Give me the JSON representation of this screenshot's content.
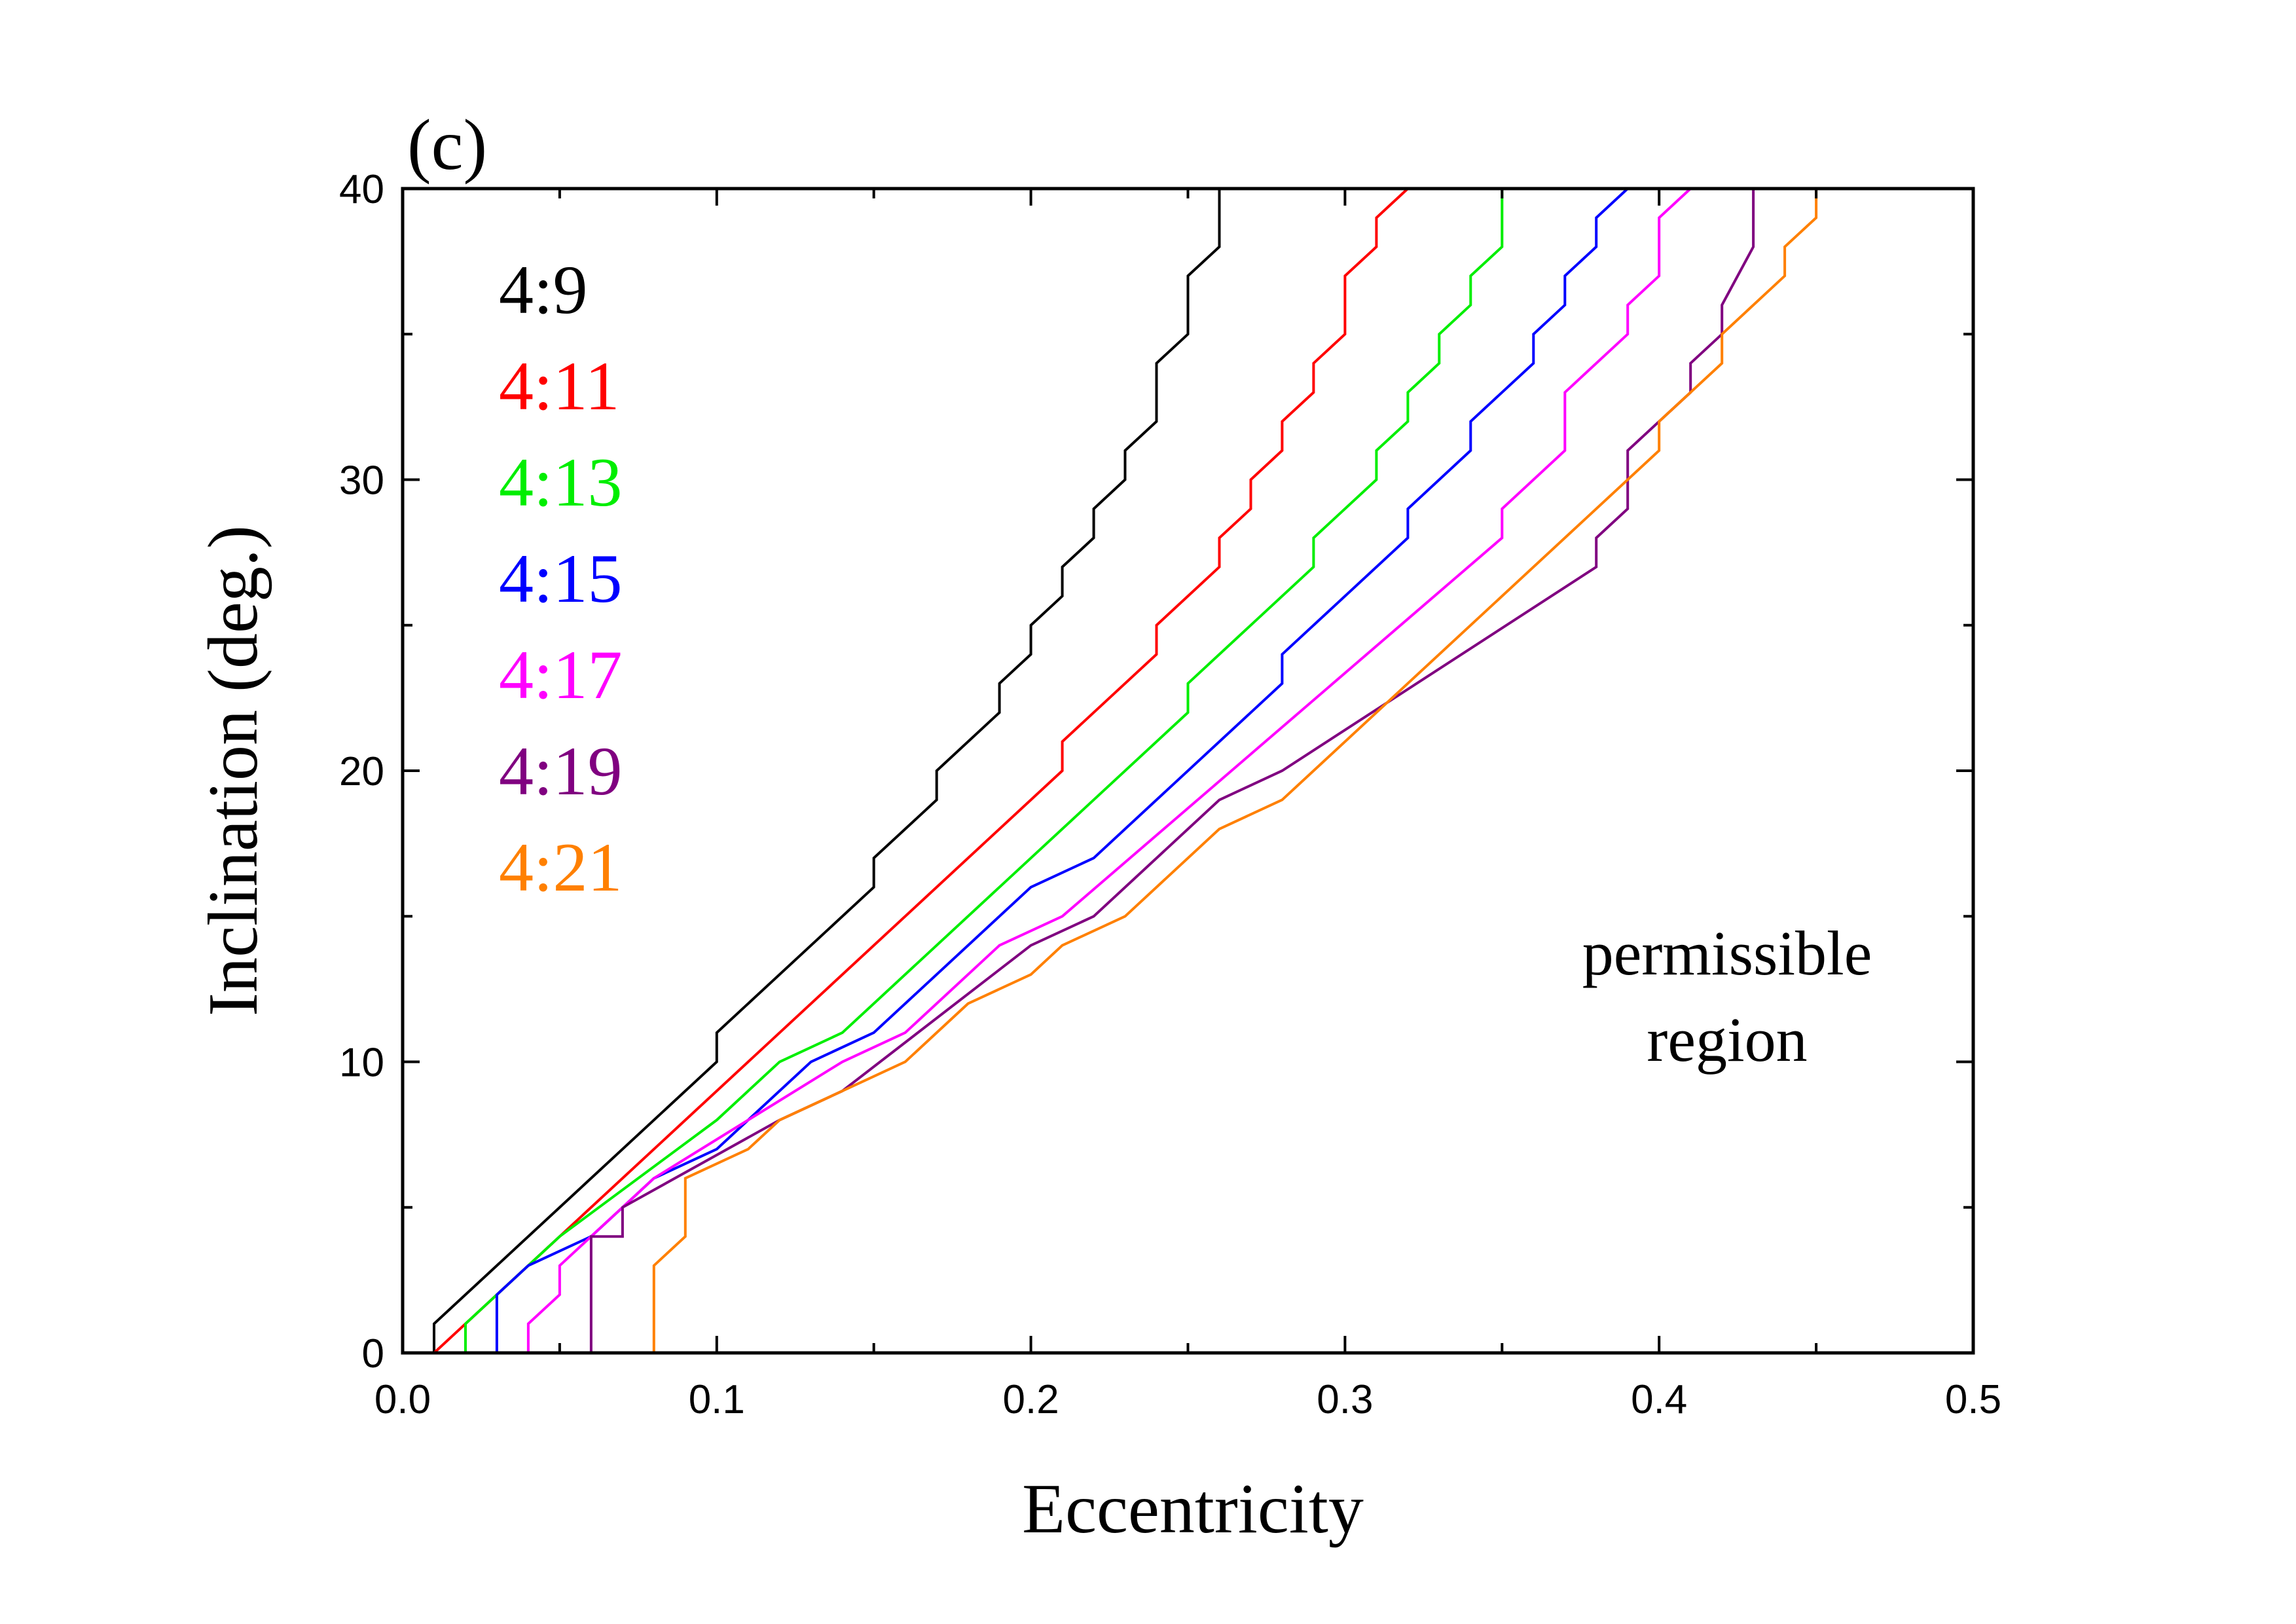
{
  "chart_data": {
    "type": "line",
    "panel_label": "(c)",
    "title": "",
    "xlabel": "Eccentricity",
    "ylabel": "Inclination (deg.)",
    "xlim": [
      0.0,
      0.5
    ],
    "ylim": [
      0,
      40
    ],
    "x_ticks": [
      0.0,
      0.1,
      0.2,
      0.3,
      0.4,
      0.5
    ],
    "x_tick_labels": [
      "0.0",
      "0.1",
      "0.2",
      "0.3",
      "0.4",
      "0.5"
    ],
    "y_ticks": [
      0,
      10,
      20,
      30,
      40
    ],
    "y_tick_labels": [
      "0",
      "10",
      "20",
      "30",
      "40"
    ],
    "x_minor_step": 0.05,
    "y_minor_step": 5,
    "grid": false,
    "legend_position": "top-left",
    "annotation": [
      "permissible",
      "region"
    ],
    "series": [
      {
        "name": "4:9",
        "color": "#000000",
        "points": [
          [
            0.01,
            0
          ],
          [
            0.01,
            1
          ],
          [
            0.1,
            10
          ],
          [
            0.1,
            11
          ],
          [
            0.15,
            16
          ],
          [
            0.15,
            17
          ],
          [
            0.17,
            19
          ],
          [
            0.17,
            20
          ],
          [
            0.19,
            22
          ],
          [
            0.19,
            23
          ],
          [
            0.2,
            24
          ],
          [
            0.2,
            25
          ],
          [
            0.21,
            26
          ],
          [
            0.21,
            27
          ],
          [
            0.22,
            28
          ],
          [
            0.22,
            29
          ],
          [
            0.23,
            30
          ],
          [
            0.23,
            31
          ],
          [
            0.24,
            32
          ],
          [
            0.24,
            34
          ],
          [
            0.25,
            35
          ],
          [
            0.25,
            37
          ],
          [
            0.26,
            38
          ],
          [
            0.26,
            40
          ]
        ]
      },
      {
        "name": "4:11",
        "color": "#ff0000",
        "points": [
          [
            0.01,
            0
          ],
          [
            0.21,
            20
          ],
          [
            0.21,
            21
          ],
          [
            0.24,
            24
          ],
          [
            0.24,
            25
          ],
          [
            0.26,
            27
          ],
          [
            0.26,
            28
          ],
          [
            0.27,
            29
          ],
          [
            0.27,
            30
          ],
          [
            0.28,
            31
          ],
          [
            0.28,
            32
          ],
          [
            0.29,
            33
          ],
          [
            0.29,
            34
          ],
          [
            0.3,
            35
          ],
          [
            0.3,
            37
          ],
          [
            0.31,
            38
          ],
          [
            0.31,
            39
          ],
          [
            0.32,
            40
          ]
        ]
      },
      {
        "name": "4:13",
        "color": "#00ee00",
        "points": [
          [
            0.02,
            0
          ],
          [
            0.02,
            1
          ],
          [
            0.05,
            4
          ],
          [
            0.1,
            8
          ],
          [
            0.12,
            10
          ],
          [
            0.14,
            11
          ],
          [
            0.25,
            22
          ],
          [
            0.25,
            23
          ],
          [
            0.29,
            27
          ],
          [
            0.29,
            28
          ],
          [
            0.31,
            30
          ],
          [
            0.31,
            31
          ],
          [
            0.32,
            32
          ],
          [
            0.32,
            33
          ],
          [
            0.33,
            34
          ],
          [
            0.33,
            35
          ],
          [
            0.34,
            36
          ],
          [
            0.34,
            37
          ],
          [
            0.35,
            38
          ],
          [
            0.35,
            40
          ]
        ]
      },
      {
        "name": "4:15",
        "color": "#0000ff",
        "points": [
          [
            0.03,
            0
          ],
          [
            0.03,
            2
          ],
          [
            0.04,
            3
          ],
          [
            0.06,
            4
          ],
          [
            0.07,
            5
          ],
          [
            0.08,
            6
          ],
          [
            0.1,
            7
          ],
          [
            0.13,
            10
          ],
          [
            0.15,
            11
          ],
          [
            0.2,
            16
          ],
          [
            0.22,
            17
          ],
          [
            0.28,
            23
          ],
          [
            0.28,
            24
          ],
          [
            0.32,
            28
          ],
          [
            0.32,
            29
          ],
          [
            0.34,
            31
          ],
          [
            0.34,
            32
          ],
          [
            0.36,
            34
          ],
          [
            0.36,
            35
          ],
          [
            0.37,
            36
          ],
          [
            0.37,
            37
          ],
          [
            0.38,
            38
          ],
          [
            0.38,
            39
          ],
          [
            0.39,
            40
          ]
        ]
      },
      {
        "name": "4:17",
        "color": "#ff00ff",
        "points": [
          [
            0.04,
            0
          ],
          [
            0.04,
            1
          ],
          [
            0.05,
            2
          ],
          [
            0.05,
            3
          ],
          [
            0.06,
            4
          ],
          [
            0.08,
            6
          ],
          [
            0.14,
            10
          ],
          [
            0.16,
            11
          ],
          [
            0.19,
            14
          ],
          [
            0.21,
            15
          ],
          [
            0.35,
            28
          ],
          [
            0.35,
            29
          ],
          [
            0.37,
            31
          ],
          [
            0.37,
            33
          ],
          [
            0.39,
            35
          ],
          [
            0.39,
            36
          ],
          [
            0.4,
            37
          ],
          [
            0.4,
            39
          ],
          [
            0.41,
            40
          ]
        ]
      },
      {
        "name": "4:19",
        "color": "#800080",
        "points": [
          [
            0.06,
            0
          ],
          [
            0.06,
            4
          ],
          [
            0.07,
            4
          ],
          [
            0.07,
            5
          ],
          [
            0.12,
            8
          ],
          [
            0.14,
            9
          ],
          [
            0.2,
            14
          ],
          [
            0.22,
            15
          ],
          [
            0.26,
            19
          ],
          [
            0.28,
            20
          ],
          [
            0.38,
            27
          ],
          [
            0.38,
            28
          ],
          [
            0.39,
            29
          ],
          [
            0.39,
            31
          ],
          [
            0.41,
            33
          ],
          [
            0.41,
            34
          ],
          [
            0.42,
            35
          ],
          [
            0.42,
            36
          ],
          [
            0.43,
            38
          ],
          [
            0.43,
            40
          ]
        ]
      },
      {
        "name": "4:21",
        "color": "#ff8000",
        "points": [
          [
            0.08,
            0
          ],
          [
            0.08,
            3
          ],
          [
            0.09,
            4
          ],
          [
            0.09,
            6
          ],
          [
            0.11,
            7
          ],
          [
            0.12,
            8
          ],
          [
            0.16,
            10
          ],
          [
            0.18,
            12
          ],
          [
            0.2,
            13
          ],
          [
            0.21,
            14
          ],
          [
            0.23,
            15
          ],
          [
            0.26,
            18
          ],
          [
            0.28,
            19
          ],
          [
            0.4,
            31
          ],
          [
            0.4,
            32
          ],
          [
            0.42,
            34
          ],
          [
            0.42,
            35
          ],
          [
            0.44,
            37
          ],
          [
            0.44,
            38
          ],
          [
            0.45,
            39
          ],
          [
            0.45,
            40
          ]
        ]
      }
    ]
  }
}
